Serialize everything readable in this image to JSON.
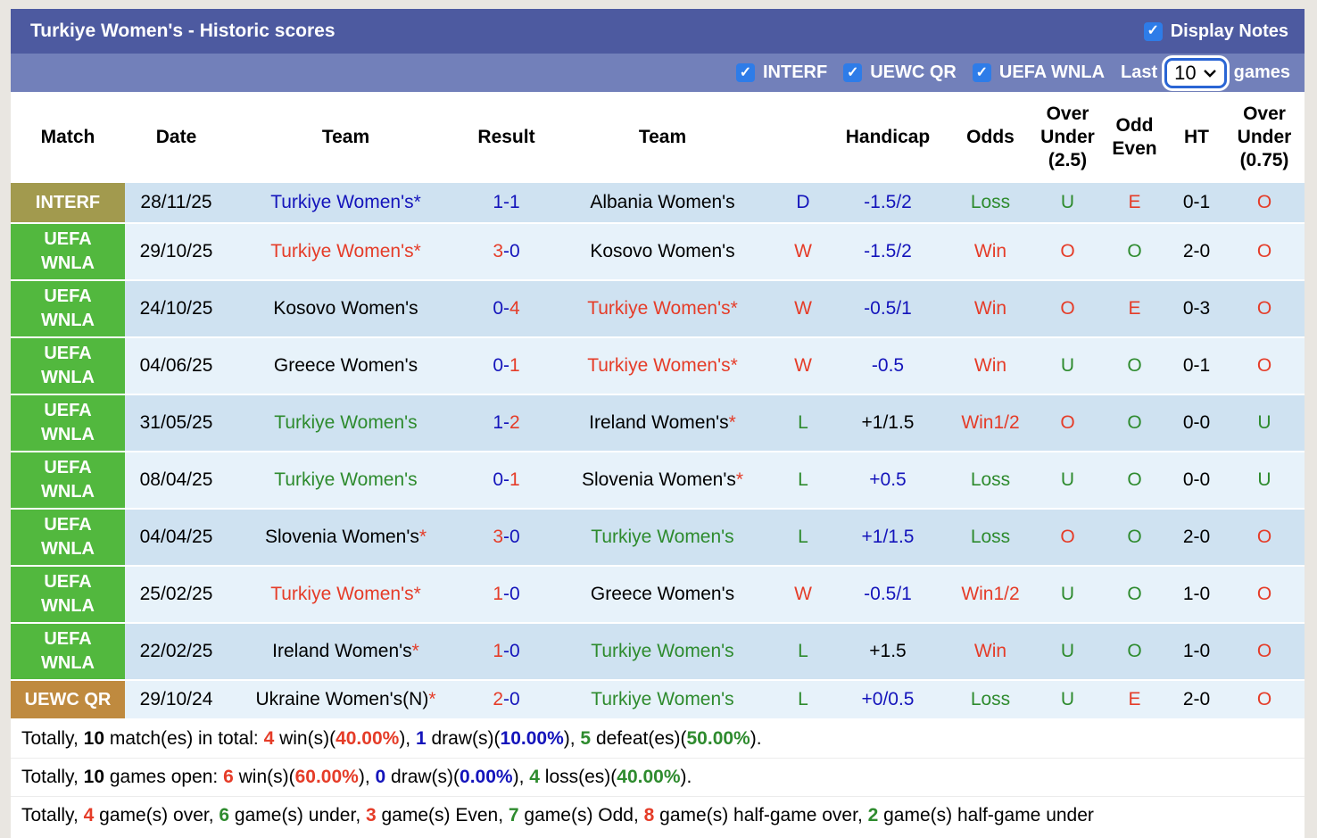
{
  "colors": {
    "bar1": "#4d5aa0",
    "bar2": "#7280ba",
    "checkbox_blue": "#2e7ce8",
    "stripe_dark": "#cfe2f1",
    "stripe_light": "#e7f2fa",
    "page_bg": "#e9e6e1",
    "select_border": "#2a65d4",
    "league": {
      "interf": "#a29a4e",
      "uefa": "#52b83e",
      "uewc": "#bf8a3f"
    },
    "text": {
      "blue": "#1414bb",
      "red": "#e53c28",
      "green": "#2e8b2e",
      "black": "#000000"
    }
  },
  "header": {
    "title": "Turkiye Women's - Historic scores",
    "display_notes_label": "Display Notes"
  },
  "filters": {
    "items": [
      {
        "label": "INTERF"
      },
      {
        "label": "UEWC QR"
      },
      {
        "label": "UEFA WNLA"
      }
    ],
    "last_label": "Last",
    "selected_games": "10",
    "games_label": "games"
  },
  "table": {
    "headers": {
      "match": "Match",
      "date": "Date",
      "team1": "Team",
      "result": "Result",
      "team2": "Team",
      "wdl": "",
      "handicap": "Handicap",
      "odds": "Odds",
      "ou25": "Over\nUnder\n(2.5)",
      "odd_even": "Odd\nEven",
      "ht": "HT",
      "ou075": "Over\nUnder\n(0.75)"
    },
    "rows": [
      {
        "league": "INTERF",
        "league_class": "interf",
        "shade": "dark",
        "size": "small",
        "date": "28/11/25",
        "home": {
          "name": "Turkiye Women's",
          "star": true,
          "color": "blue",
          "star_color": "blue"
        },
        "score": {
          "home": "1",
          "home_color": "blue",
          "away": "1",
          "away_color": "blue"
        },
        "away": {
          "name": "Albania Women's",
          "star": false,
          "color": "black"
        },
        "wdl": {
          "text": "D",
          "color": "blue"
        },
        "handicap": {
          "text": "-1.5/2",
          "color": "blue"
        },
        "odds": {
          "text": "Loss",
          "color": "green"
        },
        "ou25": {
          "text": "U",
          "color": "green"
        },
        "odd_even": {
          "text": "E",
          "color": "red"
        },
        "ht": "0-1",
        "ou075": {
          "text": "O",
          "color": "red"
        }
      },
      {
        "league": "UEFA\nWNLA",
        "league_class": "uefa",
        "shade": "light",
        "size": "big",
        "date": "29/10/25",
        "home": {
          "name": "Turkiye Women's",
          "star": true,
          "color": "red",
          "star_color": "red"
        },
        "score": {
          "home": "3",
          "home_color": "red",
          "away": "0",
          "away_color": "blue"
        },
        "away": {
          "name": "Kosovo Women's",
          "star": false,
          "color": "black"
        },
        "wdl": {
          "text": "W",
          "color": "red"
        },
        "handicap": {
          "text": "-1.5/2",
          "color": "blue"
        },
        "odds": {
          "text": "Win",
          "color": "red"
        },
        "ou25": {
          "text": "O",
          "color": "red"
        },
        "odd_even": {
          "text": "O",
          "color": "green"
        },
        "ht": "2-0",
        "ou075": {
          "text": "O",
          "color": "red"
        }
      },
      {
        "league": "UEFA\nWNLA",
        "league_class": "uefa",
        "shade": "dark",
        "size": "big",
        "date": "24/10/25",
        "home": {
          "name": "Kosovo Women's",
          "star": false,
          "color": "black"
        },
        "score": {
          "home": "0",
          "home_color": "blue",
          "away": "4",
          "away_color": "red"
        },
        "away": {
          "name": "Turkiye Women's",
          "star": true,
          "color": "red",
          "star_color": "red"
        },
        "wdl": {
          "text": "W",
          "color": "red"
        },
        "handicap": {
          "text": "-0.5/1",
          "color": "blue"
        },
        "odds": {
          "text": "Win",
          "color": "red"
        },
        "ou25": {
          "text": "O",
          "color": "red"
        },
        "odd_even": {
          "text": "E",
          "color": "red"
        },
        "ht": "0-3",
        "ou075": {
          "text": "O",
          "color": "red"
        }
      },
      {
        "league": "UEFA\nWNLA",
        "league_class": "uefa",
        "shade": "light",
        "size": "big",
        "date": "04/06/25",
        "home": {
          "name": "Greece Women's",
          "star": false,
          "color": "black"
        },
        "score": {
          "home": "0",
          "home_color": "blue",
          "away": "1",
          "away_color": "red"
        },
        "away": {
          "name": "Turkiye Women's",
          "star": true,
          "color": "red",
          "star_color": "red"
        },
        "wdl": {
          "text": "W",
          "color": "red"
        },
        "handicap": {
          "text": "-0.5",
          "color": "blue"
        },
        "odds": {
          "text": "Win",
          "color": "red"
        },
        "ou25": {
          "text": "U",
          "color": "green"
        },
        "odd_even": {
          "text": "O",
          "color": "green"
        },
        "ht": "0-1",
        "ou075": {
          "text": "O",
          "color": "red"
        }
      },
      {
        "league": "UEFA\nWNLA",
        "league_class": "uefa",
        "shade": "dark",
        "size": "big",
        "date": "31/05/25",
        "home": {
          "name": "Turkiye Women's",
          "star": false,
          "color": "green"
        },
        "score": {
          "home": "1",
          "home_color": "blue",
          "away": "2",
          "away_color": "red"
        },
        "away": {
          "name": "Ireland Women's",
          "star": true,
          "color": "black",
          "star_color": "red"
        },
        "wdl": {
          "text": "L",
          "color": "green"
        },
        "handicap": {
          "text": "+1/1.5",
          "color": "black"
        },
        "odds": {
          "text": "Win1/2",
          "color": "red"
        },
        "ou25": {
          "text": "O",
          "color": "red"
        },
        "odd_even": {
          "text": "O",
          "color": "green"
        },
        "ht": "0-0",
        "ou075": {
          "text": "U",
          "color": "green"
        }
      },
      {
        "league": "UEFA\nWNLA",
        "league_class": "uefa",
        "shade": "light",
        "size": "big",
        "date": "08/04/25",
        "home": {
          "name": "Turkiye Women's",
          "star": false,
          "color": "green"
        },
        "score": {
          "home": "0",
          "home_color": "blue",
          "away": "1",
          "away_color": "red"
        },
        "away": {
          "name": "Slovenia Women's",
          "star": true,
          "color": "black",
          "star_color": "red"
        },
        "wdl": {
          "text": "L",
          "color": "green"
        },
        "handicap": {
          "text": "+0.5",
          "color": "blue"
        },
        "odds": {
          "text": "Loss",
          "color": "green"
        },
        "ou25": {
          "text": "U",
          "color": "green"
        },
        "odd_even": {
          "text": "O",
          "color": "green"
        },
        "ht": "0-0",
        "ou075": {
          "text": "U",
          "color": "green"
        }
      },
      {
        "league": "UEFA\nWNLA",
        "league_class": "uefa",
        "shade": "dark",
        "size": "big",
        "date": "04/04/25",
        "home": {
          "name": "Slovenia Women's",
          "star": true,
          "color": "black",
          "star_color": "red"
        },
        "score": {
          "home": "3",
          "home_color": "red",
          "away": "0",
          "away_color": "blue"
        },
        "away": {
          "name": "Turkiye Women's",
          "star": false,
          "color": "green"
        },
        "wdl": {
          "text": "L",
          "color": "green"
        },
        "handicap": {
          "text": "+1/1.5",
          "color": "blue"
        },
        "odds": {
          "text": "Loss",
          "color": "green"
        },
        "ou25": {
          "text": "O",
          "color": "red"
        },
        "odd_even": {
          "text": "O",
          "color": "green"
        },
        "ht": "2-0",
        "ou075": {
          "text": "O",
          "color": "red"
        }
      },
      {
        "league": "UEFA\nWNLA",
        "league_class": "uefa",
        "shade": "light",
        "size": "big",
        "date": "25/02/25",
        "home": {
          "name": "Turkiye Women's",
          "star": true,
          "color": "red",
          "star_color": "red"
        },
        "score": {
          "home": "1",
          "home_color": "red",
          "away": "0",
          "away_color": "blue"
        },
        "away": {
          "name": "Greece Women's",
          "star": false,
          "color": "black"
        },
        "wdl": {
          "text": "W",
          "color": "red"
        },
        "handicap": {
          "text": "-0.5/1",
          "color": "blue"
        },
        "odds": {
          "text": "Win1/2",
          "color": "red"
        },
        "ou25": {
          "text": "U",
          "color": "green"
        },
        "odd_even": {
          "text": "O",
          "color": "green"
        },
        "ht": "1-0",
        "ou075": {
          "text": "O",
          "color": "red"
        }
      },
      {
        "league": "UEFA\nWNLA",
        "league_class": "uefa",
        "shade": "dark",
        "size": "big",
        "date": "22/02/25",
        "home": {
          "name": "Ireland Women's",
          "star": true,
          "color": "black",
          "star_color": "red"
        },
        "score": {
          "home": "1",
          "home_color": "red",
          "away": "0",
          "away_color": "blue"
        },
        "away": {
          "name": "Turkiye Women's",
          "star": false,
          "color": "green"
        },
        "wdl": {
          "text": "L",
          "color": "green"
        },
        "handicap": {
          "text": "+1.5",
          "color": "black"
        },
        "odds": {
          "text": "Win",
          "color": "red"
        },
        "ou25": {
          "text": "U",
          "color": "green"
        },
        "odd_even": {
          "text": "O",
          "color": "green"
        },
        "ht": "1-0",
        "ou075": {
          "text": "O",
          "color": "red"
        }
      },
      {
        "league": "UEWC QR",
        "league_class": "uewc",
        "shade": "light",
        "size": "last",
        "date": "29/10/24",
        "home": {
          "name": "Ukraine Women's(N)",
          "star": true,
          "color": "black",
          "star_color": "red"
        },
        "score": {
          "home": "2",
          "home_color": "red",
          "away": "0",
          "away_color": "blue"
        },
        "away": {
          "name": "Turkiye Women's",
          "star": false,
          "color": "green"
        },
        "wdl": {
          "text": "L",
          "color": "green"
        },
        "handicap": {
          "text": "+0/0.5",
          "color": "blue"
        },
        "odds": {
          "text": "Loss",
          "color": "green"
        },
        "ou25": {
          "text": "U",
          "color": "green"
        },
        "odd_even": {
          "text": "E",
          "color": "red"
        },
        "ht": "2-0",
        "ou075": {
          "text": "O",
          "color": "red"
        }
      }
    ]
  },
  "summary": {
    "lines": [
      [
        {
          "text": "Totally, ",
          "color": "black"
        },
        {
          "text": "10",
          "color": "black",
          "bold": true
        },
        {
          "text": " match(es) in total: ",
          "color": "black"
        },
        {
          "text": "4",
          "color": "red",
          "bold": true
        },
        {
          "text": " win(s)(",
          "color": "black"
        },
        {
          "text": "40.00%",
          "color": "red",
          "bold": true
        },
        {
          "text": "), ",
          "color": "black"
        },
        {
          "text": "1",
          "color": "blue",
          "bold": true
        },
        {
          "text": " draw(s)(",
          "color": "black"
        },
        {
          "text": "10.00%",
          "color": "blue",
          "bold": true
        },
        {
          "text": "), ",
          "color": "black"
        },
        {
          "text": "5",
          "color": "green",
          "bold": true
        },
        {
          "text": " defeat(es)(",
          "color": "black"
        },
        {
          "text": "50.00%",
          "color": "green",
          "bold": true
        },
        {
          "text": ").",
          "color": "black"
        }
      ],
      [
        {
          "text": "Totally, ",
          "color": "black"
        },
        {
          "text": "10",
          "color": "black",
          "bold": true
        },
        {
          "text": " games open: ",
          "color": "black"
        },
        {
          "text": "6",
          "color": "red",
          "bold": true
        },
        {
          "text": " win(s)(",
          "color": "black"
        },
        {
          "text": "60.00%",
          "color": "red",
          "bold": true
        },
        {
          "text": "), ",
          "color": "black"
        },
        {
          "text": "0",
          "color": "blue",
          "bold": true
        },
        {
          "text": " draw(s)(",
          "color": "black"
        },
        {
          "text": "0.00%",
          "color": "blue",
          "bold": true
        },
        {
          "text": "), ",
          "color": "black"
        },
        {
          "text": "4",
          "color": "green",
          "bold": true
        },
        {
          "text": " loss(es)(",
          "color": "black"
        },
        {
          "text": "40.00%",
          "color": "green",
          "bold": true
        },
        {
          "text": ").",
          "color": "black"
        }
      ],
      [
        {
          "text": "Totally, ",
          "color": "black"
        },
        {
          "text": "4",
          "color": "red",
          "bold": true
        },
        {
          "text": " game(s) over, ",
          "color": "black"
        },
        {
          "text": "6",
          "color": "green",
          "bold": true
        },
        {
          "text": " game(s) under, ",
          "color": "black"
        },
        {
          "text": "3",
          "color": "red",
          "bold": true
        },
        {
          "text": " game(s) Even, ",
          "color": "black"
        },
        {
          "text": "7",
          "color": "green",
          "bold": true
        },
        {
          "text": " game(s) Odd, ",
          "color": "black"
        },
        {
          "text": "8",
          "color": "red",
          "bold": true
        },
        {
          "text": " game(s) half-game over, ",
          "color": "black"
        },
        {
          "text": "2",
          "color": "green",
          "bold": true
        },
        {
          "text": " game(s) half-game under",
          "color": "black"
        }
      ]
    ]
  }
}
